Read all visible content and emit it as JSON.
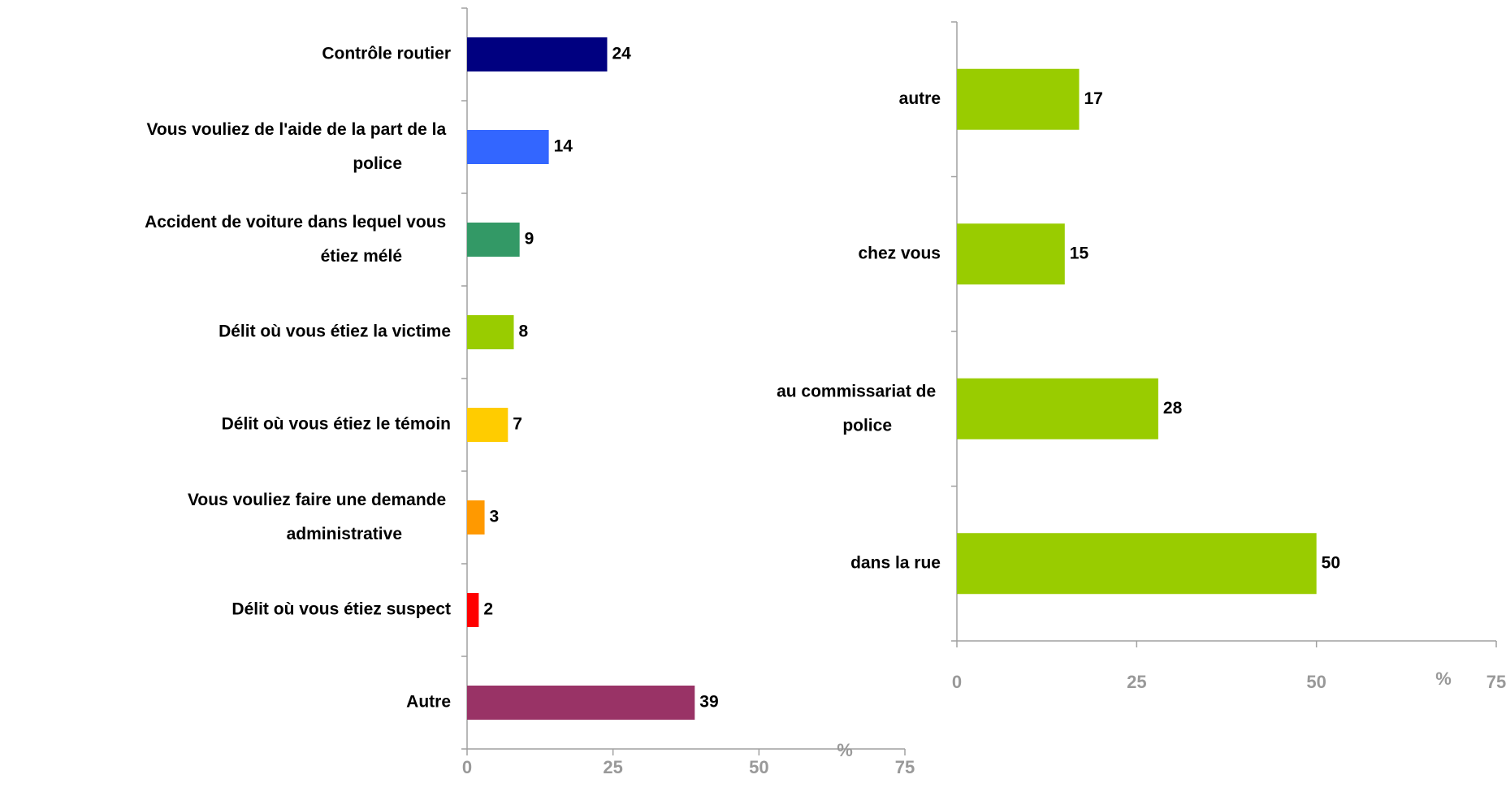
{
  "chart_data": [
    {
      "type": "bar",
      "orientation": "horizontal",
      "categories": [
        "Contrôle routier",
        "Vous vouliez de l'aide de la part de la police",
        "Accident de voiture dans lequel vous étiez mélé",
        "Délit où vous étiez la victime",
        "Délit où vous étiez le témoin",
        "Vous vouliez faire une demande administrative",
        "Délit où vous étiez suspect",
        "Autre"
      ],
      "values": [
        24,
        14,
        9,
        8,
        7,
        3,
        2,
        39
      ],
      "colors": [
        "#000080",
        "#3366ff",
        "#339966",
        "#99cc00",
        "#ffcc00",
        "#ff9900",
        "#ff0000",
        "#993366"
      ],
      "xlim": [
        0,
        75
      ],
      "xticks": [
        0,
        25,
        50,
        75
      ],
      "x_label": "%"
    },
    {
      "type": "bar",
      "orientation": "horizontal",
      "categories": [
        "autre",
        "chez vous",
        "au commissariat de police",
        "dans la rue"
      ],
      "values": [
        17,
        15,
        28,
        50
      ],
      "color": "#99cc00",
      "xlim": [
        0,
        75
      ],
      "xticks": [
        0,
        25,
        50,
        75
      ],
      "x_label": "%"
    }
  ]
}
